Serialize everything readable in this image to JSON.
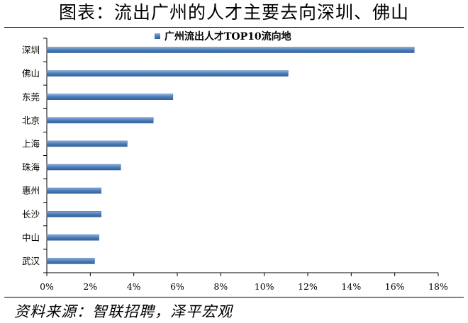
{
  "page": {
    "title": "图表：流出广州的人才主要去向深圳、佛山",
    "source": "资料来源：智联招聘，泽平宏观"
  },
  "chart_data": {
    "type": "bar",
    "orientation": "horizontal",
    "title": "",
    "categories": [
      "深圳",
      "佛山",
      "东莞",
      "北京",
      "上海",
      "珠海",
      "惠州",
      "长沙",
      "中山",
      "武汉"
    ],
    "series": [
      {
        "name": "广州流出人才TOP10流向地",
        "values": [
          16.9,
          11.1,
          5.8,
          4.9,
          3.7,
          3.4,
          2.5,
          2.5,
          2.4,
          2.2
        ],
        "color": "#4f81bd"
      }
    ],
    "xlim": [
      0,
      18
    ],
    "xticks": [
      "0%",
      "2%",
      "4%",
      "6%",
      "8%",
      "10%",
      "12%",
      "14%",
      "16%",
      "18%"
    ],
    "xlabel": "",
    "ylabel": "",
    "grid": false,
    "legend_position": "top-center"
  }
}
